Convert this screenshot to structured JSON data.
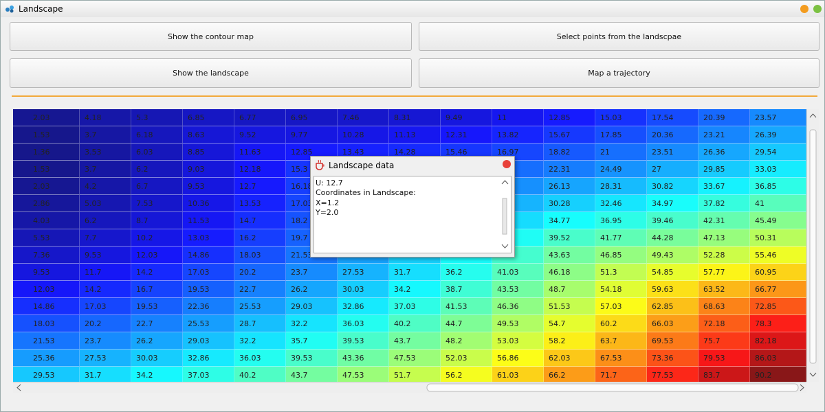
{
  "window": {
    "title": "Landscape"
  },
  "buttons": [
    "Show the contour map",
    "Select points from the landscpae",
    "Show the landscape",
    "Map a trajectory"
  ],
  "table": {
    "rows": [
      [
        2.03,
        4.18,
        5.3,
        6.85,
        6.77,
        6.95,
        7.46,
        8.31,
        9.49,
        11.0,
        12.85,
        15.03,
        17.54,
        20.39,
        23.57
      ],
      [
        1.53,
        3.7,
        6.18,
        8.63,
        9.52,
        9.77,
        10.28,
        11.13,
        12.31,
        13.82,
        15.67,
        17.85,
        20.36,
        23.21,
        26.39
      ],
      [
        1.36,
        3.53,
        6.03,
        8.85,
        11.63,
        12.85,
        13.43,
        14.28,
        15.46,
        16.97,
        18.82,
        21.0,
        23.51,
        26.36,
        29.54
      ],
      [
        1.53,
        3.7,
        6.2,
        9.03,
        12.18,
        15.3,
        null,
        null,
        null,
        null,
        22.31,
        24.49,
        27.0,
        29.85,
        33.03
      ],
      [
        2.03,
        4.2,
        6.7,
        9.53,
        12.7,
        16.18,
        null,
        null,
        null,
        null,
        26.13,
        28.31,
        30.82,
        33.67,
        36.85
      ],
      [
        2.86,
        5.03,
        7.53,
        10.36,
        13.53,
        17.03,
        null,
        null,
        null,
        null,
        30.28,
        32.46,
        34.97,
        37.82,
        41.0
      ],
      [
        4.03,
        6.2,
        8.7,
        11.53,
        14.7,
        18.2,
        null,
        null,
        null,
        null,
        34.77,
        36.95,
        39.46,
        42.31,
        45.49
      ],
      [
        5.53,
        7.7,
        10.2,
        13.03,
        16.2,
        19.7,
        null,
        null,
        null,
        null,
        39.52,
        41.77,
        44.28,
        47.13,
        50.31
      ],
      [
        7.36,
        9.53,
        12.03,
        14.86,
        18.03,
        21.53,
        null,
        null,
        null,
        null,
        43.63,
        46.85,
        49.43,
        52.28,
        55.46
      ],
      [
        9.53,
        11.7,
        14.2,
        17.03,
        20.2,
        23.7,
        27.53,
        31.7,
        36.2,
        41.03,
        46.18,
        51.3,
        54.85,
        57.77,
        60.95
      ],
      [
        12.03,
        14.2,
        16.7,
        19.53,
        22.7,
        26.2,
        30.03,
        34.2,
        38.7,
        43.53,
        48.7,
        54.18,
        59.63,
        63.52,
        66.77
      ],
      [
        14.86,
        17.03,
        19.53,
        22.36,
        25.53,
        29.03,
        32.86,
        37.03,
        41.53,
        46.36,
        51.53,
        57.03,
        62.85,
        68.63,
        72.85
      ],
      [
        18.03,
        20.2,
        22.7,
        25.53,
        28.7,
        32.2,
        36.03,
        40.2,
        44.7,
        49.53,
        54.7,
        60.2,
        66.03,
        72.18,
        78.3
      ],
      [
        21.53,
        23.7,
        26.2,
        29.03,
        32.2,
        35.7,
        39.53,
        43.7,
        48.2,
        53.03,
        58.2,
        63.7,
        69.53,
        75.7,
        82.18
      ],
      [
        25.36,
        27.53,
        30.03,
        32.86,
        36.03,
        39.53,
        43.36,
        47.53,
        52.03,
        56.86,
        62.03,
        67.53,
        73.36,
        79.53,
        86.03
      ],
      [
        29.53,
        31.7,
        34.2,
        37.03,
        40.2,
        43.7,
        47.53,
        51.7,
        56.2,
        61.03,
        66.2,
        71.7,
        77.53,
        83.7,
        90.2
      ]
    ]
  },
  "dialog": {
    "title": "Landscape data",
    "lines": [
      "U: 12.7",
      "Coordinates in Landscape:",
      "X=1.2",
      "Y=2.0"
    ]
  }
}
